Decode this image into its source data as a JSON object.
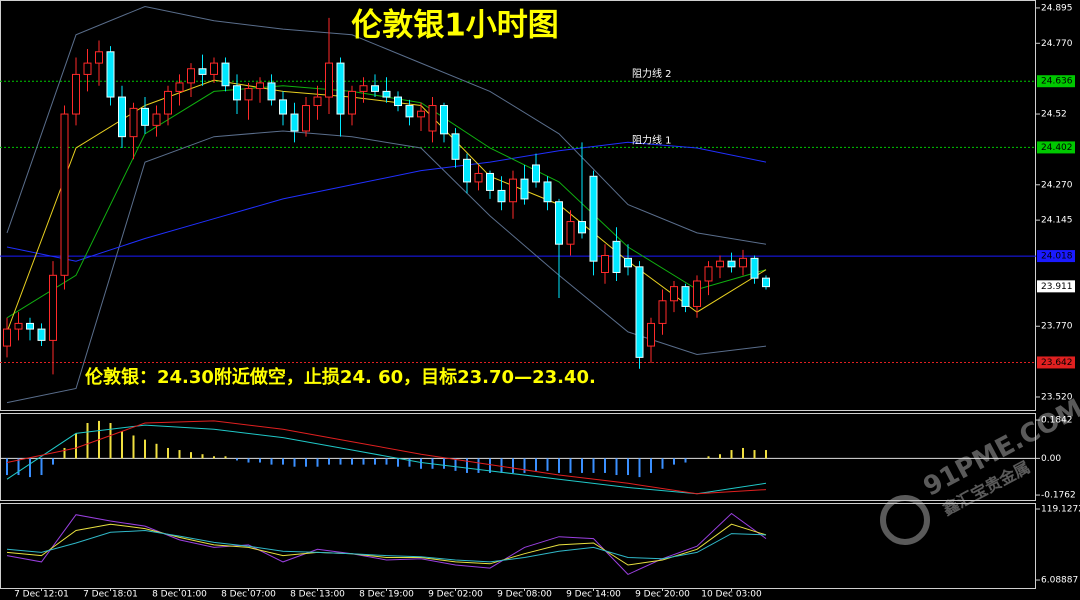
{
  "chart_data": [
    {
      "type": "candlestick",
      "title": "伦敦银1小时图",
      "annotation": "伦敦银：24.30附近做空，止损24. 60，目标23.70—23.40.",
      "categories": [
        null,
        null,
        null,
        "7 Dec 12:01",
        null,
        null,
        null,
        null,
        null,
        "7 Dec 18:01",
        null,
        null,
        null,
        null,
        null,
        "8 Dec 01:00",
        null,
        null,
        null,
        null,
        null,
        "8 Dec 07:00",
        null,
        null,
        null,
        null,
        null,
        "8 Dec 13:00",
        null,
        null,
        null,
        null,
        null,
        "8 Dec 19:00",
        null,
        null,
        null,
        null,
        null,
        "9 Dec 02:00",
        null,
        null,
        null,
        null,
        null,
        "9 Dec 08:00",
        null,
        null,
        null,
        null,
        null,
        "9 Dec 14:00",
        null,
        null,
        null,
        null,
        null,
        "9 Dec 20:00",
        null,
        null,
        null,
        null,
        null,
        "10 Dec 03:00",
        null,
        null,
        null
      ],
      "open": [
        23.7,
        23.76,
        23.78,
        23.76,
        23.72,
        23.95,
        24.52,
        24.66,
        24.7,
        24.74,
        24.58,
        24.44,
        24.54,
        24.48,
        24.52,
        24.6,
        24.63,
        24.68,
        24.66,
        24.7,
        24.62,
        24.57,
        24.61,
        24.63,
        24.57,
        24.52,
        24.46,
        24.55,
        24.58,
        24.7,
        24.52,
        24.6,
        24.62,
        24.6,
        24.58,
        24.55,
        24.51,
        24.46,
        24.55,
        24.45,
        24.36,
        24.28,
        24.31,
        24.25,
        24.21,
        24.29,
        24.34,
        24.28,
        24.21,
        24.06,
        24.14,
        24.3,
        23.96,
        24.07,
        24.01,
        23.98,
        23.7,
        23.78,
        23.86,
        23.91,
        23.84,
        23.93,
        23.98,
        24.0,
        23.98,
        24.01,
        23.94
      ],
      "high": [
        23.8,
        23.82,
        23.8,
        23.78,
        24.0,
        24.55,
        24.72,
        24.75,
        24.78,
        24.76,
        24.62,
        24.56,
        24.58,
        24.55,
        24.62,
        24.66,
        24.7,
        24.73,
        24.72,
        24.72,
        24.66,
        24.63,
        24.65,
        24.66,
        24.6,
        24.56,
        24.58,
        24.62,
        24.86,
        24.72,
        24.62,
        24.65,
        24.66,
        24.65,
        24.6,
        24.57,
        24.56,
        24.58,
        24.56,
        24.47,
        24.38,
        24.34,
        24.32,
        24.3,
        24.32,
        24.34,
        24.38,
        24.3,
        24.22,
        24.18,
        24.42,
        24.32,
        24.06,
        24.12,
        24.06,
        24.0,
        23.8,
        23.9,
        23.93,
        23.92,
        23.95,
        24.0,
        24.02,
        24.03,
        24.04,
        24.02,
        23.95
      ],
      "low": [
        23.66,
        23.72,
        23.72,
        23.7,
        23.6,
        23.9,
        24.48,
        24.6,
        24.62,
        24.55,
        24.4,
        24.36,
        24.45,
        24.44,
        24.48,
        24.55,
        24.58,
        24.62,
        24.63,
        24.6,
        24.52,
        24.5,
        24.56,
        24.55,
        24.48,
        24.42,
        24.44,
        24.5,
        24.52,
        24.44,
        24.48,
        24.56,
        24.58,
        24.56,
        24.53,
        24.48,
        24.46,
        24.42,
        24.42,
        24.33,
        24.24,
        24.25,
        24.22,
        24.18,
        24.15,
        24.2,
        24.26,
        24.18,
        23.87,
        24.02,
        24.08,
        23.95,
        23.92,
        23.93,
        23.95,
        23.62,
        23.64,
        23.74,
        23.82,
        23.82,
        23.8,
        23.88,
        23.94,
        23.96,
        23.95,
        23.92,
        23.9
      ],
      "close": [
        23.76,
        23.78,
        23.76,
        23.72,
        23.95,
        24.52,
        24.66,
        24.7,
        24.74,
        24.58,
        24.44,
        24.54,
        24.48,
        24.52,
        24.6,
        24.63,
        24.68,
        24.66,
        24.7,
        24.62,
        24.57,
        24.61,
        24.63,
        24.57,
        24.52,
        24.46,
        24.55,
        24.58,
        24.7,
        24.52,
        24.6,
        24.62,
        24.6,
        24.58,
        24.55,
        24.51,
        24.53,
        24.55,
        24.45,
        24.36,
        24.28,
        24.31,
        24.25,
        24.21,
        24.29,
        24.22,
        24.28,
        24.21,
        24.06,
        24.14,
        24.1,
        24.0,
        24.02,
        23.96,
        23.98,
        23.66,
        23.78,
        23.86,
        23.91,
        23.84,
        23.93,
        23.98,
        24.0,
        23.98,
        24.01,
        23.94,
        23.91
      ],
      "up_color": "#ff2a2a",
      "down_color": "#00e8ff",
      "ylim": [
        23.474,
        24.923
      ],
      "yticks": [
        24.895,
        {
          "value": 24.77,
          "label": "24.770"
        },
        24.52,
        {
          "value": 24.27,
          "label": "24.270"
        },
        24.145,
        {
          "value": 23.77,
          "label": "23.770"
        },
        {
          "value": 23.52,
          "label": "23.520"
        }
      ],
      "levels": [
        {
          "value": 24.636,
          "name": "阻力线 2",
          "color": "#00c800",
          "style": "dotted"
        },
        {
          "value": 24.402,
          "name": "阻力线 1",
          "color": "#00c800",
          "style": "dotted"
        },
        {
          "value": 24.018,
          "color": "#1a1aff",
          "style": "solid"
        },
        {
          "value": 23.642,
          "color": "#e02020",
          "style": "dotted"
        }
      ],
      "price_marker": {
        "value": 23.911,
        "color": "#ffffff"
      },
      "series": [
        {
          "color": "#5a6e8c",
          "x": [
            0,
            6,
            12,
            18,
            24,
            30,
            36,
            42,
            48,
            54,
            60,
            66
          ],
          "values": [
            24.1,
            24.8,
            24.9,
            24.85,
            24.82,
            24.8,
            24.7,
            24.6,
            24.45,
            24.2,
            24.1,
            24.06
          ]
        },
        {
          "color": "#5a6e8c",
          "x": [
            0,
            6,
            12,
            18,
            24,
            30,
            36,
            42,
            48,
            54,
            60,
            66
          ],
          "values": [
            23.5,
            23.55,
            24.35,
            24.44,
            24.46,
            24.44,
            24.4,
            24.16,
            23.95,
            23.75,
            23.67,
            23.7
          ]
        },
        {
          "color": "#2030ff",
          "x": [
            0,
            6,
            12,
            18,
            24,
            30,
            36,
            42,
            48,
            54,
            60,
            66
          ],
          "values": [
            24.05,
            24.0,
            24.08,
            24.15,
            24.22,
            24.27,
            24.32,
            24.35,
            24.39,
            24.42,
            24.4,
            24.35
          ]
        },
        {
          "color": "#10b010",
          "x": [
            0,
            6,
            12,
            18,
            24,
            30,
            36,
            42,
            48,
            54,
            60,
            66
          ],
          "values": [
            23.8,
            23.95,
            24.45,
            24.6,
            24.62,
            24.6,
            24.56,
            24.4,
            24.28,
            24.05,
            23.9,
            23.97
          ]
        },
        {
          "color": "#e8d020",
          "x": [
            0,
            6,
            12,
            18,
            24,
            30,
            36,
            42,
            48,
            54,
            60,
            66
          ],
          "values": [
            23.75,
            24.4,
            24.55,
            24.64,
            24.6,
            24.58,
            24.55,
            24.3,
            24.2,
            24.0,
            23.82,
            23.97
          ]
        }
      ]
    },
    {
      "type": "macd",
      "values": [
        -0.08,
        -0.08,
        -0.09,
        -0.08,
        -0.03,
        0.05,
        0.12,
        0.17,
        0.18,
        0.17,
        0.13,
        0.11,
        0.09,
        0.07,
        0.05,
        0.04,
        0.03,
        0.02,
        0.01,
        0.01,
        -0.01,
        -0.02,
        -0.02,
        -0.03,
        -0.03,
        -0.04,
        -0.04,
        -0.04,
        -0.03,
        -0.03,
        -0.03,
        -0.03,
        -0.03,
        -0.03,
        -0.04,
        -0.04,
        -0.05,
        -0.05,
        -0.05,
        -0.06,
        -0.07,
        -0.07,
        -0.07,
        -0.07,
        -0.07,
        -0.07,
        -0.06,
        -0.06,
        -0.07,
        -0.07,
        -0.07,
        -0.07,
        -0.07,
        -0.08,
        -0.08,
        -0.09,
        -0.07,
        -0.05,
        -0.03,
        -0.02,
        0.0,
        0.01,
        0.02,
        0.04,
        0.05,
        0.04,
        0.04
      ],
      "up_color": "#f0e040",
      "down_color": "#3a8fff",
      "ylim": [
        -0.2,
        0.218
      ],
      "yticks": [
        0.1842,
        {
          "value": 0,
          "label": "0.00"
        },
        -0.1762
      ],
      "series": [
        {
          "color": "#20c8c8",
          "x": [
            0,
            6,
            12,
            18,
            24,
            30,
            36,
            42,
            48,
            54,
            60,
            66
          ],
          "values": [
            -0.1,
            0.12,
            0.16,
            0.14,
            0.1,
            0.04,
            -0.02,
            -0.06,
            -0.1,
            -0.14,
            -0.17,
            -0.12
          ]
        },
        {
          "color": "#e02020",
          "x": [
            0,
            6,
            12,
            18,
            24,
            30,
            36,
            42,
            48,
            54,
            60,
            66
          ],
          "values": [
            -0.02,
            0.05,
            0.17,
            0.18,
            0.14,
            0.08,
            0.02,
            -0.03,
            -0.08,
            -0.12,
            -0.17,
            -0.15
          ]
        }
      ]
    },
    {
      "type": "line",
      "ylim": [
        -6.6,
        128.7
      ],
      "yticks": [
        119.1272,
        6.08887
      ],
      "series": [
        {
          "color": "#9a40e0",
          "x": [
            0,
            3,
            6,
            9,
            12,
            15,
            18,
            21,
            24,
            27,
            30,
            33,
            36,
            39,
            42,
            45,
            48,
            51,
            54,
            57,
            60,
            63,
            66
          ],
          "values": [
            45,
            35,
            110,
            100,
            92,
            70,
            58,
            62,
            35,
            55,
            48,
            38,
            40,
            30,
            25,
            58,
            75,
            72,
            15,
            40,
            60,
            112,
            72
          ]
        },
        {
          "color": "#e8e040",
          "x": [
            0,
            3,
            6,
            9,
            12,
            15,
            18,
            21,
            24,
            27,
            30,
            33,
            36,
            39,
            42,
            45,
            48,
            51,
            54,
            57,
            60,
            63,
            66
          ],
          "values": [
            50,
            45,
            85,
            95,
            88,
            74,
            62,
            58,
            45,
            50,
            48,
            42,
            42,
            35,
            32,
            48,
            62,
            65,
            30,
            38,
            55,
            95,
            78
          ]
        },
        {
          "color": "#30b8c8",
          "x": [
            0,
            3,
            6,
            9,
            12,
            15,
            18,
            21,
            24,
            27,
            30,
            33,
            36,
            39,
            42,
            45,
            48,
            51,
            54,
            57,
            60,
            63,
            66
          ],
          "values": [
            55,
            50,
            65,
            82,
            85,
            76,
            66,
            60,
            52,
            50,
            48,
            45,
            43,
            38,
            35,
            42,
            52,
            58,
            42,
            40,
            50,
            80,
            78
          ]
        }
      ]
    }
  ],
  "watermark": {
    "brand": "91PME.COM",
    "subtitle": "鑫汇宝贵金属"
  }
}
